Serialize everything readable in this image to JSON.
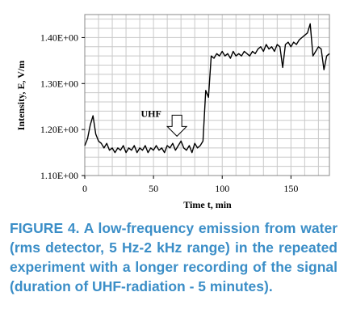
{
  "chart_data": {
    "type": "line",
    "ylabel": "Intensity, E, V/m",
    "xlabel": "Time t, min",
    "annotation": "UHF",
    "annotation_at": [
      60,
      1.175
    ],
    "caption_label": "FIGURE 4.",
    "caption": "A low-frequency emission from water (rms detector, 5 Hz-2 kHz range) in the repeated experiment with a longer recording of the signal (duration of UHF-radiation - 5 minutes).",
    "color": "#000000",
    "grid": true,
    "xlim": [
      0,
      178
    ],
    "ylim": [
      1.1,
      1.45
    ],
    "xticks": [
      0,
      50,
      100,
      150
    ],
    "yticks": [
      {
        "value": 1.1,
        "label": "1.10E+00"
      },
      {
        "value": 1.2,
        "label": "1.20E+00"
      },
      {
        "value": 1.3,
        "label": "1.30E+00"
      },
      {
        "value": 1.4,
        "label": "1.40E+00"
      }
    ],
    "xgrid": [
      10,
      20,
      30,
      40,
      50,
      60,
      70,
      80,
      90,
      100,
      110,
      120,
      130,
      140,
      150,
      160,
      170
    ],
    "ygrid": [
      1.12,
      1.14,
      1.16,
      1.18,
      1.2,
      1.22,
      1.24,
      1.26,
      1.28,
      1.3,
      1.32,
      1.34,
      1.36,
      1.38,
      1.4,
      1.42,
      1.44
    ],
    "x": [
      0,
      2,
      4,
      6,
      8,
      10,
      12,
      14,
      16,
      18,
      20,
      22,
      24,
      26,
      28,
      30,
      32,
      34,
      36,
      38,
      40,
      42,
      44,
      46,
      48,
      50,
      52,
      54,
      56,
      58,
      60,
      62,
      64,
      66,
      68,
      70,
      72,
      74,
      76,
      78,
      80,
      82,
      84,
      86,
      88,
      90,
      92,
      94,
      96,
      98,
      100,
      102,
      104,
      106,
      108,
      110,
      112,
      114,
      116,
      118,
      120,
      122,
      124,
      126,
      128,
      130,
      132,
      134,
      136,
      138,
      140,
      142,
      144,
      146,
      148,
      150,
      152,
      154,
      156,
      158,
      160,
      162,
      164,
      166,
      168,
      170,
      172,
      174,
      176,
      178
    ],
    "values": [
      1.165,
      1.18,
      1.21,
      1.23,
      1.19,
      1.175,
      1.17,
      1.16,
      1.17,
      1.155,
      1.16,
      1.15,
      1.16,
      1.155,
      1.165,
      1.15,
      1.16,
      1.155,
      1.165,
      1.15,
      1.16,
      1.155,
      1.165,
      1.15,
      1.16,
      1.155,
      1.165,
      1.155,
      1.16,
      1.15,
      1.165,
      1.16,
      1.17,
      1.155,
      1.165,
      1.175,
      1.16,
      1.155,
      1.165,
      1.15,
      1.17,
      1.16,
      1.165,
      1.175,
      1.285,
      1.27,
      1.36,
      1.355,
      1.365,
      1.36,
      1.37,
      1.36,
      1.365,
      1.355,
      1.37,
      1.36,
      1.365,
      1.36,
      1.37,
      1.365,
      1.36,
      1.37,
      1.365,
      1.375,
      1.38,
      1.37,
      1.385,
      1.375,
      1.38,
      1.37,
      1.385,
      1.38,
      1.335,
      1.385,
      1.39,
      1.38,
      1.39,
      1.385,
      1.395,
      1.4,
      1.405,
      1.41,
      1.43,
      1.36,
      1.37,
      1.38,
      1.375,
      1.33,
      1.36,
      1.365
    ]
  }
}
